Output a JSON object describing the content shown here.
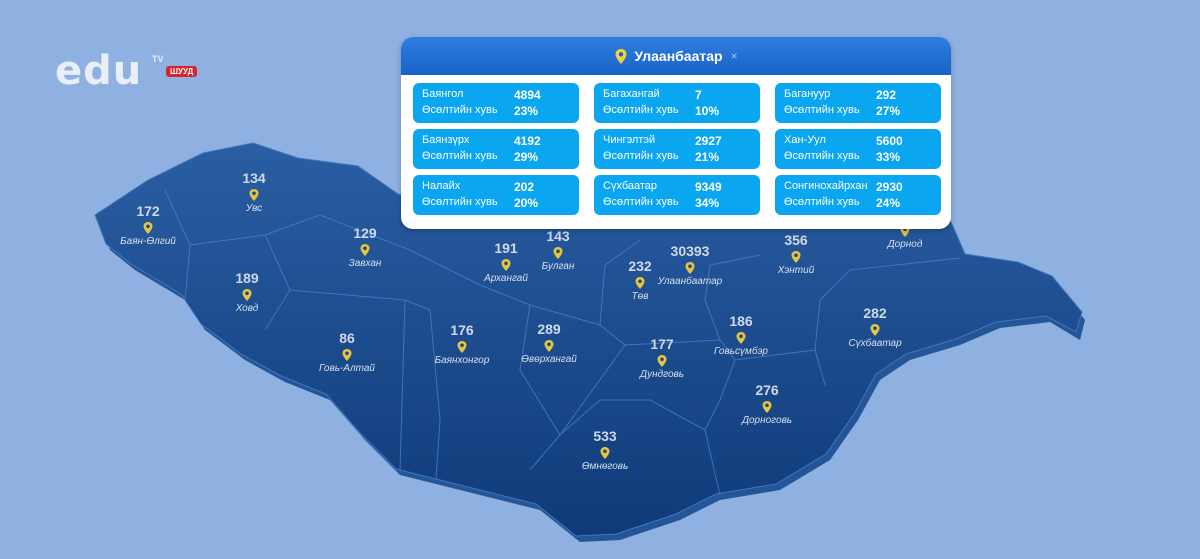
{
  "logo": {
    "text": "edu",
    "tv": "TV",
    "live": "ШУУД"
  },
  "popup": {
    "title": "Улаанбаатар",
    "close": "×",
    "districts": [
      {
        "name": "Баянгол",
        "value": "4894",
        "growth_label": "Өсөлтийн хувь",
        "growth": "23%"
      },
      {
        "name": "Багахангай",
        "value": "7",
        "growth_label": "Өсөлтийн хувь",
        "growth": "10%"
      },
      {
        "name": "Багануур",
        "value": "292",
        "growth_label": "Өсөлтийн хувь",
        "growth": "27%"
      },
      {
        "name": "Баянзүрх",
        "value": "4192",
        "growth_label": "Өсөлтийн хувь",
        "growth": "29%"
      },
      {
        "name": "Чингэлтэй",
        "value": "2927",
        "growth_label": "Өсөлтийн хувь",
        "growth": "21%"
      },
      {
        "name": "Хан-Уул",
        "value": "5600",
        "growth_label": "Өсөлтийн хувь",
        "growth": "33%"
      },
      {
        "name": "Налайх",
        "value": "202",
        "growth_label": "Өсөлтийн хувь",
        "growth": "20%"
      },
      {
        "name": "Сүхбаатар",
        "value": "9349",
        "growth_label": "Өсөлтийн хувь",
        "growth": "34%"
      },
      {
        "name": "Сонгинохайрхан",
        "value": "2930",
        "growth_label": "Өсөлтийн хувь",
        "growth": "24%"
      }
    ]
  },
  "colors": {
    "background": "#8fb1e2",
    "map": "#1a4a8a",
    "card": "#0aa6ef",
    "pin": "#e8c53a"
  },
  "aimags": [
    {
      "name": "Увс",
      "value": "134"
    },
    {
      "name": "Баян-Өлгий",
      "value": "172"
    },
    {
      "name": "Завхан",
      "value": "129"
    },
    {
      "name": "Ховд",
      "value": "189"
    },
    {
      "name": "Архангай",
      "value": "191"
    },
    {
      "name": "Булган",
      "value": "143"
    },
    {
      "name": "Төв",
      "value": "232"
    },
    {
      "name": "Улаанбаатар",
      "value": "30393"
    },
    {
      "name": "Хэнтий",
      "value": "356"
    },
    {
      "name": "Дорнод",
      "value": ""
    },
    {
      "name": "Говь-Алтай",
      "value": "86"
    },
    {
      "name": "Баянхонгор",
      "value": "176"
    },
    {
      "name": "Өвөрхангай",
      "value": "289"
    },
    {
      "name": "Дундговь",
      "value": "177"
    },
    {
      "name": "Говьсүмбэр",
      "value": "186"
    },
    {
      "name": "Сүхбаатар",
      "value": "282"
    },
    {
      "name": "Дорноговь",
      "value": "276"
    },
    {
      "name": "Өмнөговь",
      "value": "533"
    }
  ]
}
